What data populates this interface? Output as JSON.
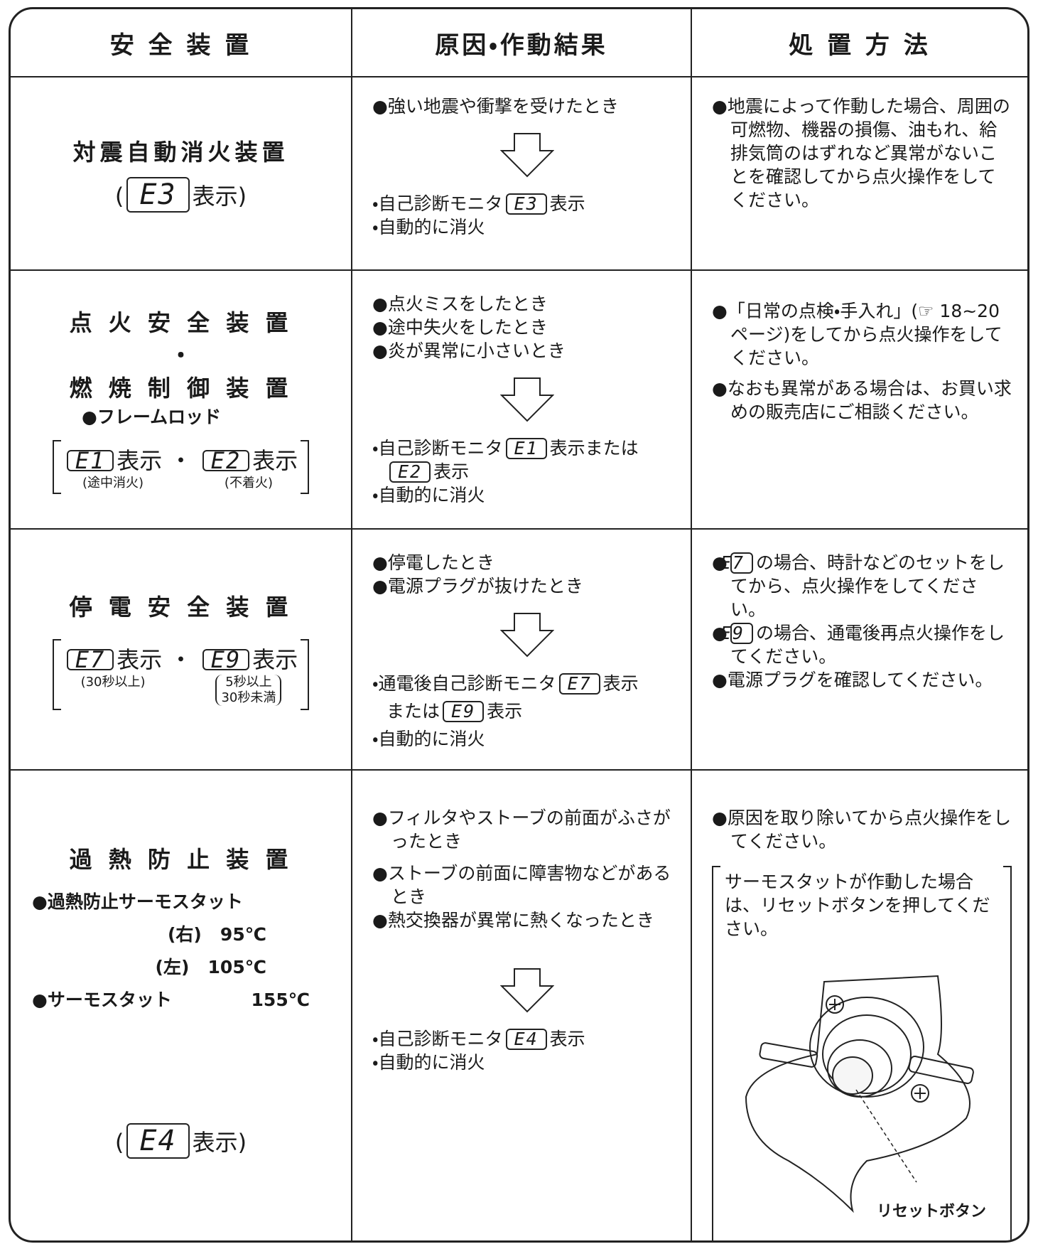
{
  "header": {
    "device": "安 全 装 置",
    "cause": "原因・作動結果",
    "action": "処 置 方 法"
  },
  "rows": [
    {
      "device": {
        "name": "対震自動消火装置",
        "display": [
          "(",
          "E3",
          "表示)"
        ]
      },
      "cause": {
        "triggers": [
          "●強い地震や衝撃を受けたとき"
        ],
        "results": [
          [
            "・自己診断モニタ",
            "E3",
            "表示"
          ],
          [
            "・自動的に消火"
          ]
        ]
      },
      "action": {
        "items": [
          "●地震によって作動した場合、周囲の可燃物、機器の損傷、油もれ、給排気筒のはずれなど異常がないことを確認してから点火操作をしてください。"
        ]
      }
    },
    {
      "device": {
        "name": [
          "点 火 安 全 装 置",
          "・",
          "燃 焼 制 御 装 置"
        ],
        "sub": "●フレームロッド",
        "display": [
          {
            "code": "E1",
            "text": "表示",
            "note": "(途中消火)"
          },
          "・",
          {
            "code": "E2",
            "text": "表示",
            "note": "(不着火)"
          }
        ]
      },
      "cause": {
        "triggers": [
          "●点火ミスをしたとき",
          "●途中失火をしたとき",
          "●炎が異常に小さいとき"
        ],
        "results": [
          [
            "・自己診断モニタ",
            "E1",
            "表示または"
          ],
          [
            "E2",
            "表示"
          ],
          [
            "・自動的に消火"
          ]
        ]
      },
      "action": {
        "items": [
          "●「日常の点検・手入れ」(☞ 18~20ページ)をしてから点火操作をしてください。",
          "●なおも異常がある場合は、お買い求めの販売店にご相談ください。"
        ]
      }
    },
    {
      "device": {
        "name": "停 電 安 全 装 置",
        "display": [
          {
            "code": "E7",
            "text": "表示",
            "note": "(30秒以上)"
          },
          "・",
          {
            "code": "E9",
            "text": "表示",
            "note": [
              "5秒以上",
              "30秒未満"
            ]
          }
        ]
      },
      "cause": {
        "triggers": [
          "●停電したとき",
          "●電源プラグが抜けたとき"
        ],
        "results": [
          [
            "・通電後自己診断モニタ",
            "E7",
            "表示"
          ],
          [
            "または",
            "E9",
            "表示"
          ],
          [
            "・自動的に消火"
          ]
        ]
      },
      "action": {
        "items": [
          [
            "●",
            "E7",
            "の場合、時計などのセットをしてから、点火操作をしてください。"
          ],
          [
            "●",
            "E9",
            "の場合、通電後再点火操作をしてください。"
          ],
          [
            "●電源プラグを確認してください。"
          ]
        ]
      }
    },
    {
      "device": {
        "name": "過 熱 防 止 装 置",
        "specs": [
          [
            "●過熱防止サーモスタット"
          ],
          [
            "(右)",
            "95℃"
          ],
          [
            "(左)",
            "105℃"
          ],
          [
            "●サーモスタット",
            "155℃"
          ]
        ],
        "display": [
          "(",
          "E4",
          "表示)"
        ]
      },
      "cause": {
        "triggers": [
          "●フィルタやストーブの前面がふさがったとき",
          "●ストーブの前面に障害物などがあるとき",
          "●熱交換器が異常に熱くなったとき"
        ],
        "results": [
          [
            "・自己診断モニタ",
            "E4",
            "表示"
          ],
          [
            "・自動的に消火"
          ]
        ]
      },
      "action": {
        "items": [
          "●原因を取り除いてから点火操作をしてください。"
        ],
        "note": "サーモスタットが作動した場合は、リセットボタンを押してください。",
        "figure_label": "リセットボタン"
      }
    }
  ]
}
